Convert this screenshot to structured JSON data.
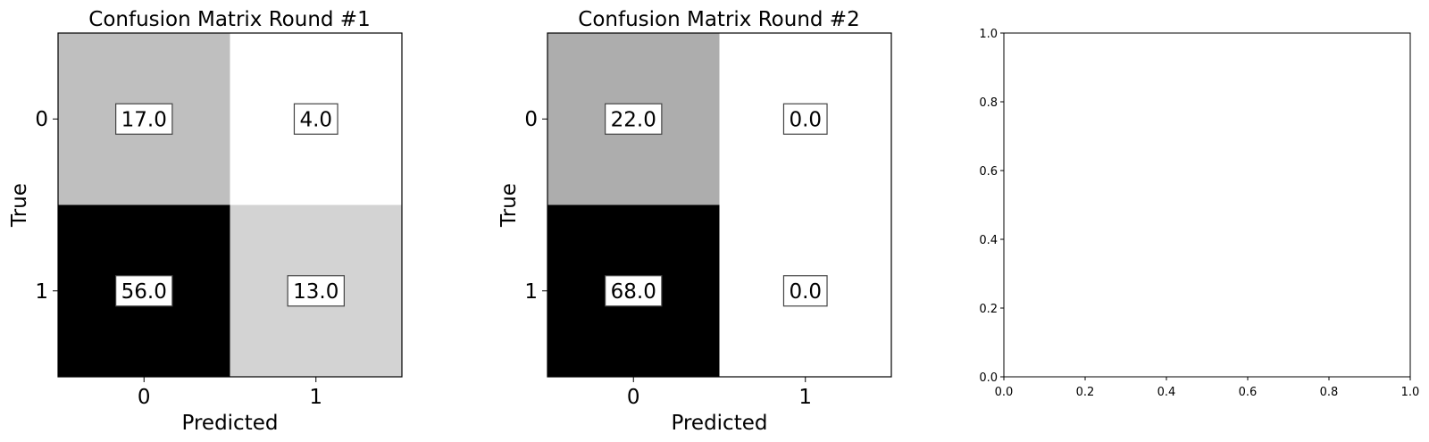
{
  "chart_data": [
    {
      "type": "heatmap",
      "title": "Confusion Matrix Round #1",
      "xlabel": "Predicted",
      "ylabel": "True",
      "x_categories": [
        "0",
        "1"
      ],
      "y_categories": [
        "0",
        "1"
      ],
      "values": [
        [
          17.0,
          4.0
        ],
        [
          56.0,
          13.0
        ]
      ],
      "cell_labels": [
        [
          "17.0",
          "4.0"
        ],
        [
          "56.0",
          "13.0"
        ]
      ],
      "colormap": "binary",
      "color_low": "#ffffff",
      "color_high": "#000000"
    },
    {
      "type": "heatmap",
      "title": "Confusion Matrix Round #2",
      "xlabel": "Predicted",
      "ylabel": "True",
      "x_categories": [
        "0",
        "1"
      ],
      "y_categories": [
        "0",
        "1"
      ],
      "values": [
        [
          22.0,
          0.0
        ],
        [
          68.0,
          0.0
        ]
      ],
      "cell_labels": [
        [
          "22.0",
          "0.0"
        ],
        [
          "68.0",
          "0.0"
        ]
      ],
      "colormap": "binary",
      "color_low": "#ffffff",
      "color_high": "#000000"
    },
    {
      "type": "scatter",
      "title": "",
      "xlabel": "",
      "ylabel": "",
      "xlim": [
        0.0,
        1.0
      ],
      "ylim": [
        0.0,
        1.0
      ],
      "xticks": [
        "0.0",
        "0.2",
        "0.4",
        "0.6",
        "0.8",
        "1.0"
      ],
      "yticks": [
        "0.0",
        "0.2",
        "0.4",
        "0.6",
        "0.8",
        "1.0"
      ],
      "series": []
    }
  ]
}
